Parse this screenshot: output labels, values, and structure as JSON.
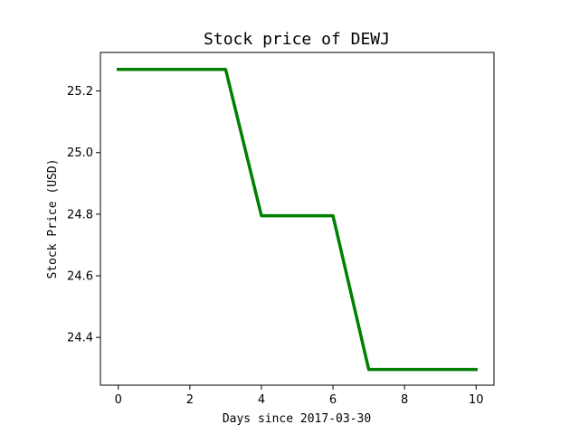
{
  "chart_data": {
    "type": "line",
    "title": "Stock price of DEWJ",
    "xlabel": "Days since 2017-03-30",
    "ylabel": "Stock Price (USD)",
    "xlim": [
      -0.5,
      10.5
    ],
    "ylim": [
      24.245,
      25.325
    ],
    "xticks": [
      0,
      2,
      4,
      6,
      8,
      10
    ],
    "yticks": [
      24.4,
      24.6,
      24.8,
      25.0,
      25.2
    ],
    "grid": false,
    "series": [
      {
        "color": "#008000",
        "x": [
          0,
          1,
          2,
          3,
          4,
          5,
          6,
          7,
          8,
          9,
          10
        ],
        "y": [
          25.27,
          25.27,
          25.27,
          25.27,
          24.795,
          24.795,
          24.795,
          24.296,
          24.296,
          24.296,
          24.296
        ]
      }
    ]
  }
}
